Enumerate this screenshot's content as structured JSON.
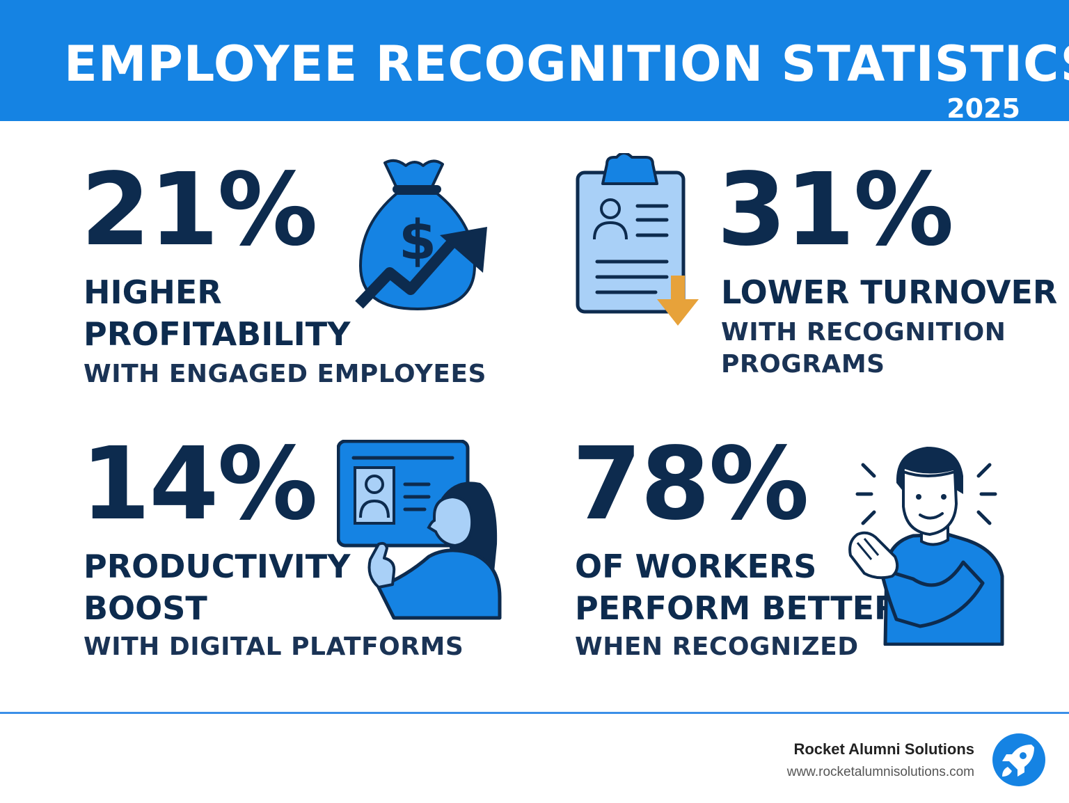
{
  "header": {
    "title": "EMPLOYEE RECOGNITION STATISTICS",
    "year": "2025",
    "color": "#1583e3"
  },
  "stats": [
    {
      "percent": "21%",
      "line1": "HIGHER",
      "line1b": "PROFITABILITY",
      "line2": "WITH ENGAGED EMPLOYEES",
      "icon": "money-bag-growth-icon"
    },
    {
      "percent": "31%",
      "line1": "LOWER TURNOVER",
      "line2": "WITH RECOGNITION",
      "line2b": "PROGRAMS",
      "icon": "clipboard-profile-icon"
    },
    {
      "percent": "14%",
      "line1": "PRODUCTIVITY",
      "line1b": "BOOST",
      "line2": "WITH DIGITAL PLATFORMS",
      "icon": "digital-platform-user-icon"
    },
    {
      "percent": "78%",
      "line1": "OF WORKERS",
      "line1b": "PERFORM BETTER",
      "line2": "WHEN RECOGNIZED",
      "icon": "clapping-person-icon"
    }
  ],
  "footer": {
    "brand_name": "Rocket Alumni Solutions",
    "url": "www.rocketalumnisolutions.com",
    "logo_icon": "rocket-logo-icon"
  },
  "colors": {
    "primary_blue": "#1583e3",
    "navy": "#0d2b4e",
    "light_blue": "#a9d0f7",
    "accent_orange": "#e7a23a"
  }
}
